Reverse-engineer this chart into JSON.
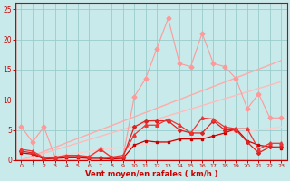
{
  "bg_color": "#c8eaea",
  "grid_color": "#99cccc",
  "line_color_dark": "#cc0000",
  "xlabel": "Vent moyen/en rafales ( km/h )",
  "xlabel_color": "#cc0000",
  "tick_color": "#cc0000",
  "xlim": [
    -0.5,
    23.5
  ],
  "ylim": [
    0,
    26
  ],
  "yticks": [
    0,
    5,
    10,
    15,
    20,
    25
  ],
  "xticks": [
    0,
    1,
    2,
    3,
    4,
    5,
    6,
    7,
    8,
    9,
    10,
    11,
    12,
    13,
    14,
    15,
    16,
    17,
    18,
    19,
    20,
    21,
    22,
    23
  ],
  "rafales": [
    5.5,
    3.0,
    5.5,
    0.5,
    0.5,
    0.5,
    0.3,
    2.0,
    0.3,
    0.5,
    10.5,
    13.5,
    18.5,
    23.5,
    16.0,
    15.5,
    21.0,
    16.0,
    15.5,
    13.5,
    8.5,
    11.0,
    7.0,
    7.0
  ],
  "trend1_x": [
    0,
    23
  ],
  "trend1_y": [
    0,
    16.5
  ],
  "trend2_x": [
    0,
    23
  ],
  "trend2_y": [
    0,
    13.0
  ],
  "trend3_x": [
    0,
    23
  ],
  "trend3_y": [
    0,
    5.5
  ],
  "series1": [
    1.2,
    1.0,
    0.2,
    0.3,
    0.4,
    0.4,
    0.3,
    0.3,
    0.2,
    0.3,
    2.5,
    3.2,
    3.0,
    3.0,
    3.5,
    3.5,
    3.5,
    4.0,
    4.5,
    5.2,
    3.2,
    2.5,
    2.2,
    2.0
  ],
  "series2": [
    1.5,
    1.2,
    0.3,
    0.4,
    0.6,
    0.6,
    0.5,
    0.5,
    0.4,
    0.5,
    5.5,
    6.5,
    6.5,
    6.5,
    5.0,
    4.5,
    4.5,
    6.5,
    5.0,
    5.0,
    3.0,
    1.2,
    2.2,
    2.2
  ],
  "series3": [
    1.8,
    1.5,
    0.4,
    0.5,
    0.8,
    0.8,
    0.6,
    1.8,
    0.5,
    0.8,
    4.2,
    5.8,
    5.8,
    6.8,
    5.8,
    4.5,
    7.0,
    6.8,
    5.5,
    5.2,
    5.2,
    1.8,
    2.8,
    2.8
  ],
  "x_vals": [
    0,
    1,
    2,
    3,
    4,
    5,
    6,
    7,
    8,
    9,
    10,
    11,
    12,
    13,
    14,
    15,
    16,
    17,
    18,
    19,
    20,
    21,
    22,
    23
  ]
}
